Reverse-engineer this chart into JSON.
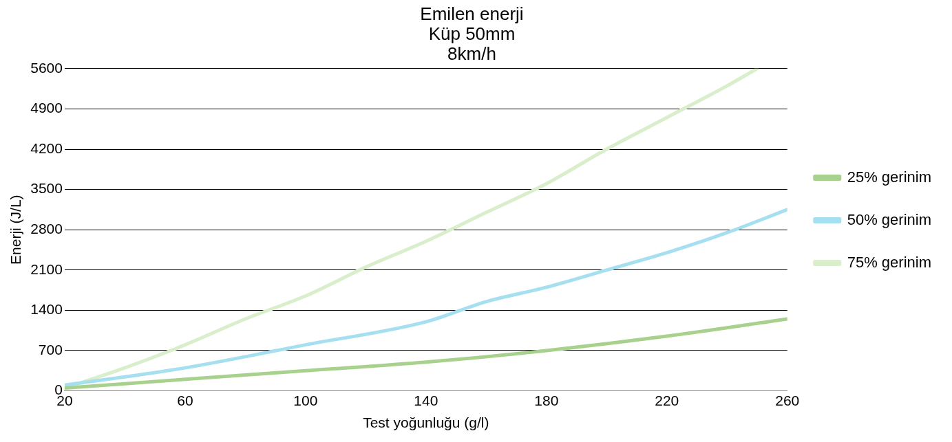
{
  "chart_data": {
    "type": "line",
    "title": "Emilen enerji\nKüp 50mm\n8km/h",
    "xlabel": "Test yoğunluğu (g/l)",
    "ylabel": "Enerji (J/L)",
    "xlim": [
      20,
      260
    ],
    "xticks": [
      20,
      60,
      100,
      140,
      180,
      220,
      260
    ],
    "ylim": [
      0,
      5600
    ],
    "yticks": [
      0,
      700,
      1400,
      2100,
      2800,
      3500,
      4200,
      4900,
      5600
    ],
    "grid": "y",
    "legend": "right",
    "marker": "none",
    "line_style": "solid",
    "series": [
      {
        "name": "25% gerinim",
        "color": "#a9d18e",
        "x": [
          20,
          60,
          100,
          140,
          180,
          220,
          260
        ],
        "values": [
          50,
          200,
          350,
          500,
          700,
          950,
          1250
        ]
      },
      {
        "name": "50% gerinim",
        "color": "#a6e0f0",
        "x": [
          20,
          60,
          100,
          140,
          160,
          180,
          200,
          220,
          240,
          260
        ],
        "values": [
          100,
          400,
          800,
          1200,
          1550,
          1800,
          2100,
          2400,
          2750,
          3150
        ]
      },
      {
        "name": "75% gerinim",
        "color": "#d9eecb",
        "x": [
          20,
          40,
          60,
          80,
          100,
          120,
          140,
          160,
          180,
          200,
          220,
          240,
          250
        ],
        "values": [
          50,
          400,
          800,
          1250,
          1650,
          2150,
          2600,
          3100,
          3600,
          4200,
          4750,
          5300,
          5600
        ]
      }
    ]
  }
}
